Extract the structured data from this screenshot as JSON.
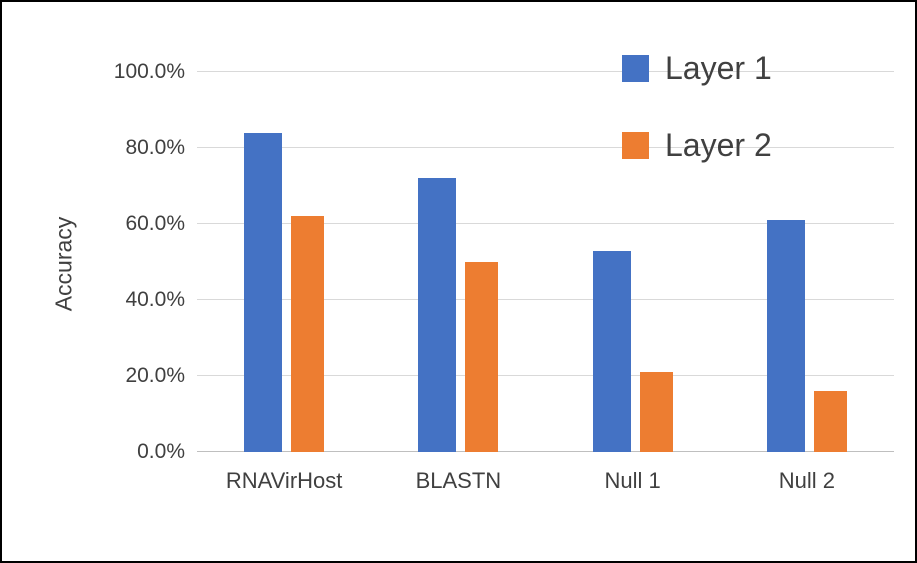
{
  "chart_data": {
    "type": "bar",
    "title": "",
    "xlabel": "",
    "ylabel": "Accuracy",
    "ylim": [
      0,
      100
    ],
    "yticks": [
      0,
      20,
      40,
      60,
      80,
      100
    ],
    "ytick_labels": [
      "0.0%",
      "20.0%",
      "40.0%",
      "60.0%",
      "80.0%",
      "100.0%"
    ],
    "categories": [
      "RNAVirHost",
      "BLASTN",
      "Null 1",
      "Null 2"
    ],
    "series": [
      {
        "name": "Layer 1",
        "color": "#4472C4",
        "values": [
          84,
          72,
          53,
          61
        ]
      },
      {
        "name": "Layer 2",
        "color": "#ED7D31",
        "values": [
          62,
          50,
          21,
          16
        ]
      }
    ],
    "value_unit": "percent",
    "legend_position": "top-right",
    "grid": true,
    "gridline_color": "#D9D9D9",
    "axis_line_color": "#BFBFBF",
    "background": "#FFFFFF",
    "border_color": "#000000"
  }
}
